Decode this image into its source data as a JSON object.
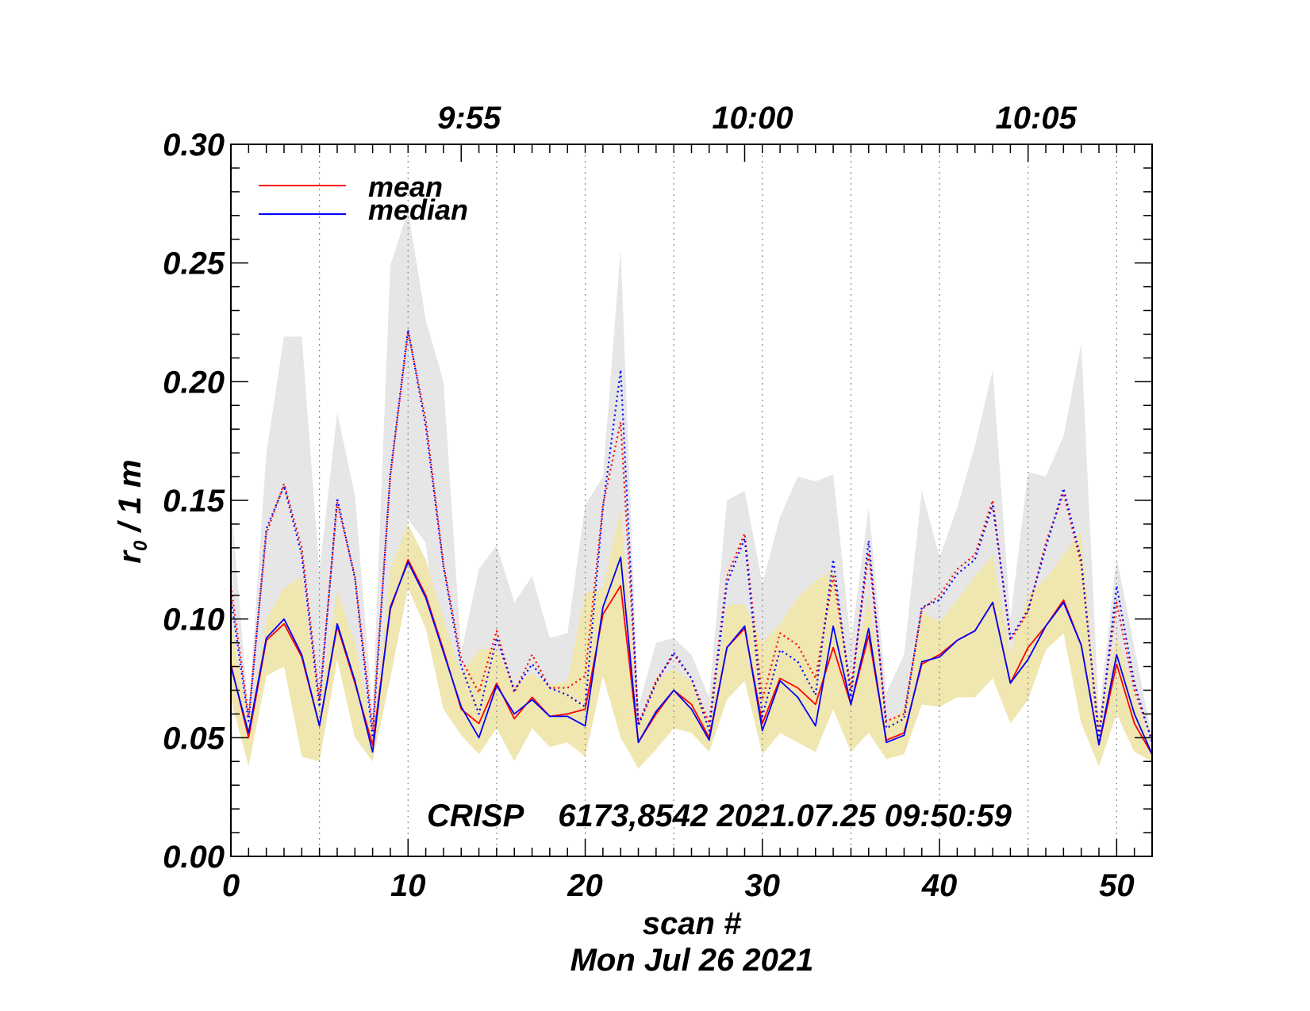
{
  "chart_data": {
    "type": "line",
    "ylabel": "r",
    "ylabel_sub": "0",
    "ylabel_rest": " / 1 m",
    "xlabel": "scan #",
    "date_label": "Mon Jul 26 2021",
    "annotation": "CRISP    6173,8542 2021.07.25 09:50:59",
    "xlim": [
      0,
      52
    ],
    "ylim": [
      0.0,
      0.3
    ],
    "x_ticks": [
      0,
      10,
      20,
      30,
      40,
      50
    ],
    "x_tick_labels": [
      "0",
      "10",
      "20",
      "30",
      "40",
      "50"
    ],
    "y_ticks": [
      0.0,
      0.05,
      0.1,
      0.15,
      0.2,
      0.25,
      0.3
    ],
    "y_tick_labels": [
      "0.00",
      "0.05",
      "0.10",
      "0.15",
      "0.20",
      "0.25",
      "0.30"
    ],
    "top_axis": [
      {
        "x": 13,
        "label": "9:55"
      },
      {
        "x": 29,
        "label": "10:00"
      },
      {
        "x": 45,
        "label": "10:05"
      }
    ],
    "vertical_gridlines_x": [
      5,
      10,
      15,
      20,
      25,
      30,
      35,
      40,
      45,
      50
    ],
    "legend": [
      {
        "name": "mean",
        "color": "#ff0000"
      },
      {
        "name": "median",
        "color": "#0000ff"
      }
    ],
    "x": [
      0,
      1,
      2,
      3,
      4,
      5,
      6,
      7,
      8,
      9,
      10,
      11,
      12,
      13,
      14,
      15,
      16,
      17,
      18,
      19,
      20,
      21,
      22,
      23,
      24,
      25,
      26,
      27,
      28,
      29,
      30,
      31,
      32,
      33,
      34,
      35,
      36,
      37,
      38,
      39,
      40,
      41,
      42,
      43,
      44,
      45,
      46,
      47,
      48,
      49,
      50,
      51,
      52
    ],
    "series": [
      {
        "name": "mean",
        "color": "#ff0000",
        "style": "solid",
        "values": [
          0.081,
          0.05,
          0.091,
          0.098,
          0.084,
          0.055,
          0.097,
          0.073,
          0.047,
          0.104,
          0.125,
          0.11,
          0.087,
          0.062,
          0.056,
          0.073,
          0.058,
          0.067,
          0.059,
          0.06,
          0.062,
          0.102,
          0.114,
          0.048,
          0.06,
          0.07,
          0.064,
          0.05,
          0.088,
          0.096,
          0.056,
          0.075,
          0.071,
          0.064,
          0.088,
          0.064,
          0.093,
          0.049,
          0.052,
          0.081,
          0.085,
          0.091,
          0.095,
          0.107,
          0.073,
          0.088,
          0.097,
          0.108,
          0.089,
          0.047,
          0.081,
          0.056,
          0.043
        ]
      },
      {
        "name": "median",
        "color": "#0000ff",
        "style": "solid",
        "values": [
          0.08,
          0.052,
          0.092,
          0.1,
          0.085,
          0.055,
          0.098,
          0.074,
          0.044,
          0.105,
          0.124,
          0.109,
          0.086,
          0.063,
          0.05,
          0.072,
          0.06,
          0.066,
          0.059,
          0.059,
          0.055,
          0.105,
          0.126,
          0.048,
          0.061,
          0.07,
          0.062,
          0.049,
          0.088,
          0.097,
          0.053,
          0.074,
          0.067,
          0.055,
          0.097,
          0.064,
          0.096,
          0.048,
          0.051,
          0.082,
          0.084,
          0.091,
          0.095,
          0.107,
          0.073,
          0.083,
          0.097,
          0.107,
          0.089,
          0.047,
          0.085,
          0.06,
          0.043
        ]
      },
      {
        "name": "mean (dotted)",
        "color": "#ff0000",
        "style": "dotted",
        "values": [
          0.114,
          0.059,
          0.136,
          0.157,
          0.13,
          0.066,
          0.149,
          0.118,
          0.054,
          0.16,
          0.221,
          0.184,
          0.123,
          0.083,
          0.069,
          0.095,
          0.069,
          0.085,
          0.071,
          0.071,
          0.076,
          0.148,
          0.183,
          0.056,
          0.074,
          0.085,
          0.075,
          0.056,
          0.118,
          0.136,
          0.066,
          0.094,
          0.089,
          0.075,
          0.118,
          0.071,
          0.128,
          0.057,
          0.06,
          0.104,
          0.11,
          0.121,
          0.127,
          0.15,
          0.091,
          0.103,
          0.132,
          0.153,
          0.123,
          0.052,
          0.107,
          0.07,
          0.049
        ]
      },
      {
        "name": "median (dotted)",
        "color": "#0000ff",
        "style": "dotted",
        "values": [
          0.109,
          0.057,
          0.138,
          0.156,
          0.127,
          0.063,
          0.151,
          0.117,
          0.05,
          0.161,
          0.222,
          0.181,
          0.122,
          0.08,
          0.06,
          0.092,
          0.07,
          0.081,
          0.071,
          0.068,
          0.063,
          0.147,
          0.205,
          0.055,
          0.073,
          0.086,
          0.075,
          0.053,
          0.115,
          0.134,
          0.059,
          0.087,
          0.082,
          0.068,
          0.125,
          0.067,
          0.133,
          0.054,
          0.058,
          0.105,
          0.108,
          0.119,
          0.125,
          0.148,
          0.092,
          0.104,
          0.13,
          0.155,
          0.125,
          0.049,
          0.114,
          0.073,
          0.048
        ]
      }
    ],
    "bands": [
      {
        "name": "gray range",
        "color": "#e6e6e6",
        "upper": [
          0.15,
          0.06,
          0.17,
          0.219,
          0.219,
          0.12,
          0.187,
          0.152,
          0.061,
          0.249,
          0.272,
          0.226,
          0.2,
          0.086,
          0.121,
          0.131,
          0.107,
          0.118,
          0.092,
          0.094,
          0.148,
          0.16,
          0.256,
          0.063,
          0.09,
          0.092,
          0.085,
          0.067,
          0.15,
          0.154,
          0.115,
          0.143,
          0.16,
          0.158,
          0.161,
          0.09,
          0.147,
          0.069,
          0.085,
          0.154,
          0.126,
          0.147,
          0.173,
          0.205,
          0.1,
          0.162,
          0.16,
          0.177,
          0.216,
          0.06,
          0.126,
          0.088,
          0.05
        ],
        "lower": [
          0.068,
          0.044,
          0.084,
          0.084,
          0.07,
          0.048,
          0.083,
          0.068,
          0.043,
          0.09,
          0.142,
          0.132,
          0.068,
          0.058,
          0.053,
          0.065,
          0.055,
          0.062,
          0.056,
          0.056,
          0.057,
          0.099,
          0.1,
          0.043,
          0.054,
          0.062,
          0.059,
          0.045,
          0.076,
          0.082,
          0.049,
          0.066,
          0.062,
          0.057,
          0.076,
          0.058,
          0.08,
          0.045,
          0.047,
          0.071,
          0.073,
          0.079,
          0.083,
          0.091,
          0.066,
          0.077,
          0.11,
          0.12,
          0.083,
          0.044,
          0.071,
          0.052,
          0.04
        ]
      },
      {
        "name": "yellow range",
        "color": "#f0e6b0",
        "upper": [
          0.1,
          0.055,
          0.1,
          0.113,
          0.118,
          0.063,
          0.112,
          0.09,
          0.051,
          0.121,
          0.14,
          0.125,
          0.1,
          0.077,
          0.087,
          0.088,
          0.072,
          0.077,
          0.072,
          0.074,
          0.111,
          0.113,
          0.146,
          0.055,
          0.075,
          0.079,
          0.074,
          0.057,
          0.106,
          0.106,
          0.09,
          0.098,
          0.109,
          0.116,
          0.121,
          0.072,
          0.11,
          0.056,
          0.062,
          0.103,
          0.099,
          0.108,
          0.118,
          0.127,
          0.085,
          0.11,
          0.117,
          0.127,
          0.137,
          0.057,
          0.093,
          0.068,
          0.045
        ],
        "lower": [
          0.066,
          0.038,
          0.076,
          0.08,
          0.042,
          0.04,
          0.083,
          0.05,
          0.04,
          0.075,
          0.113,
          0.096,
          0.062,
          0.051,
          0.043,
          0.054,
          0.04,
          0.054,
          0.046,
          0.048,
          0.042,
          0.076,
          0.05,
          0.037,
          0.045,
          0.054,
          0.052,
          0.044,
          0.066,
          0.074,
          0.043,
          0.052,
          0.048,
          0.044,
          0.062,
          0.044,
          0.052,
          0.041,
          0.043,
          0.064,
          0.063,
          0.067,
          0.067,
          0.075,
          0.056,
          0.066,
          0.087,
          0.094,
          0.056,
          0.038,
          0.06,
          0.044,
          0.04
        ]
      }
    ]
  }
}
